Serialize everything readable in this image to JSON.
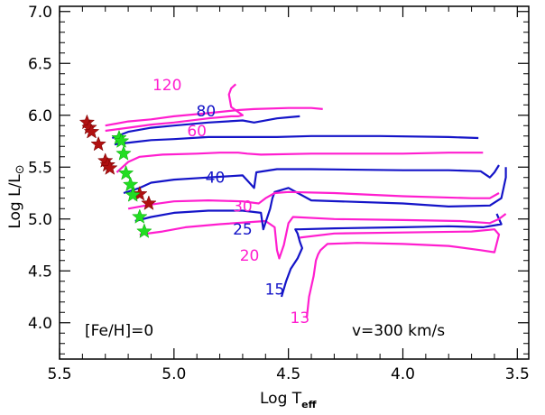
{
  "chart_data": {
    "type": "line",
    "xlabel_main": "Log T",
    "xlabel_sub": "eff",
    "ylabel_main": "Log L/L",
    "ylabel_sun": "⊙",
    "xlim": [
      5.5,
      3.45
    ],
    "ylim": [
      3.65,
      7.05
    ],
    "x_reversed": true,
    "x_ticks": [
      5.5,
      5.0,
      4.5,
      4.0,
      3.5
    ],
    "x_tick_labels": [
      "5.5",
      "5.0",
      "4.5",
      "4.0",
      "3.5"
    ],
    "y_ticks": [
      4.0,
      4.5,
      5.0,
      5.5,
      6.0,
      6.5,
      7.0
    ],
    "y_tick_labels": [
      "4.0",
      "4.5",
      "5.0",
      "5.5",
      "6.0",
      "6.5",
      "7.0"
    ],
    "annotations": {
      "metallicity": "[Fe/H]=0",
      "velocity": "v=300 km/s"
    },
    "colors": {
      "magenta": "#ff1ecf",
      "blue": "#1414c8",
      "red_star": "#b01010",
      "green_star": "#22dd22"
    },
    "series": [
      {
        "label": "13",
        "color": "magenta",
        "points": [
          [
            4.42,
            4.05
          ],
          [
            4.41,
            4.25
          ],
          [
            4.39,
            4.45
          ],
          [
            4.38,
            4.6
          ],
          [
            4.37,
            4.66
          ],
          [
            4.36,
            4.7
          ],
          [
            4.33,
            4.76
          ],
          [
            4.2,
            4.77
          ],
          [
            4.0,
            4.76
          ],
          [
            3.8,
            4.74
          ],
          [
            3.66,
            4.7
          ],
          [
            3.6,
            4.68
          ],
          [
            3.58,
            4.85
          ],
          [
            3.6,
            4.9
          ],
          [
            3.7,
            4.88
          ],
          [
            4.0,
            4.87
          ],
          [
            4.3,
            4.86
          ],
          [
            4.45,
            4.82
          ]
        ],
        "label_pos": [
          4.45,
          4.0
        ]
      },
      {
        "label": "15",
        "color": "blue",
        "points": [
          [
            4.53,
            4.25
          ],
          [
            4.51,
            4.4
          ],
          [
            4.49,
            4.52
          ],
          [
            4.46,
            4.62
          ],
          [
            4.44,
            4.72
          ],
          [
            4.45,
            4.78
          ],
          [
            4.46,
            4.86
          ],
          [
            4.47,
            4.9
          ],
          [
            4.45,
            4.9
          ],
          [
            4.3,
            4.91
          ],
          [
            4.0,
            4.92
          ],
          [
            3.8,
            4.93
          ],
          [
            3.65,
            4.92
          ],
          [
            3.57,
            4.95
          ],
          [
            3.59,
            5.05
          ]
        ],
        "label_pos": [
          4.56,
          4.27
        ]
      },
      {
        "label": "20",
        "color": "magenta",
        "points": [
          [
            5.15,
            4.85
          ],
          [
            5.05,
            4.88
          ],
          [
            4.95,
            4.92
          ],
          [
            4.8,
            4.95
          ],
          [
            4.6,
            4.98
          ],
          [
            4.56,
            4.92
          ],
          [
            4.55,
            4.7
          ],
          [
            4.54,
            4.62
          ],
          [
            4.52,
            4.75
          ],
          [
            4.5,
            4.96
          ],
          [
            4.48,
            5.02
          ],
          [
            4.3,
            5.0
          ],
          [
            4.0,
            4.99
          ],
          [
            3.75,
            4.98
          ],
          [
            3.62,
            4.96
          ],
          [
            3.58,
            5.0
          ],
          [
            3.55,
            5.05
          ]
        ],
        "label_pos": [
          4.67,
          4.6
        ]
      },
      {
        "label": "25",
        "color": "blue",
        "points": [
          [
            5.17,
            4.98
          ],
          [
            5.1,
            5.02
          ],
          [
            5.0,
            5.06
          ],
          [
            4.85,
            5.08
          ],
          [
            4.7,
            5.08
          ],
          [
            4.62,
            5.06
          ],
          [
            4.61,
            4.9
          ],
          [
            4.58,
            5.1
          ],
          [
            4.57,
            5.2
          ],
          [
            4.56,
            5.26
          ],
          [
            4.5,
            5.3
          ],
          [
            4.4,
            5.18
          ],
          [
            4.0,
            5.15
          ],
          [
            3.8,
            5.12
          ],
          [
            3.62,
            5.13
          ],
          [
            3.57,
            5.2
          ],
          [
            3.56,
            5.3
          ],
          [
            3.55,
            5.4
          ],
          [
            3.55,
            5.5
          ]
        ],
        "label_pos": [
          4.7,
          4.85
        ]
      },
      {
        "label": "30",
        "color": "magenta",
        "points": [
          [
            5.2,
            5.1
          ],
          [
            5.1,
            5.14
          ],
          [
            5.0,
            5.17
          ],
          [
            4.85,
            5.18
          ],
          [
            4.7,
            5.17
          ],
          [
            4.63,
            5.15
          ],
          [
            4.6,
            5.2
          ],
          [
            4.56,
            5.25
          ],
          [
            4.5,
            5.26
          ],
          [
            4.3,
            5.25
          ],
          [
            4.0,
            5.22
          ],
          [
            3.7,
            5.2
          ],
          [
            3.62,
            5.2
          ],
          [
            3.58,
            5.25
          ]
        ],
        "label_pos": [
          4.7,
          5.07
        ]
      },
      {
        "label": "40",
        "color": "blue",
        "points": [
          [
            5.22,
            5.25
          ],
          [
            5.15,
            5.3
          ],
          [
            5.1,
            5.35
          ],
          [
            5.0,
            5.38
          ],
          [
            4.85,
            5.4
          ],
          [
            4.7,
            5.42
          ],
          [
            4.65,
            5.3
          ],
          [
            4.64,
            5.45
          ],
          [
            4.55,
            5.48
          ],
          [
            4.4,
            5.48
          ],
          [
            4.0,
            5.47
          ],
          [
            3.8,
            5.47
          ],
          [
            3.66,
            5.46
          ],
          [
            3.62,
            5.4
          ],
          [
            3.6,
            5.45
          ],
          [
            3.58,
            5.52
          ]
        ],
        "label_pos": [
          4.82,
          5.35
        ]
      },
      {
        "label": "60",
        "color": "magenta",
        "points": [
          [
            5.25,
            5.45
          ],
          [
            5.2,
            5.55
          ],
          [
            5.15,
            5.6
          ],
          [
            5.05,
            5.62
          ],
          [
            4.9,
            5.63
          ],
          [
            4.8,
            5.64
          ],
          [
            4.72,
            5.64
          ],
          [
            4.68,
            5.63
          ],
          [
            4.62,
            5.62
          ],
          [
            4.4,
            5.63
          ],
          [
            4.0,
            5.63
          ],
          [
            3.8,
            5.64
          ],
          [
            3.65,
            5.64
          ]
        ],
        "label_pos": [
          4.9,
          5.8
        ]
      },
      {
        "label": "80",
        "color": "blue",
        "points": [
          [
            5.27,
            5.78
          ],
          [
            5.2,
            5.84
          ],
          [
            5.1,
            5.88
          ],
          [
            5.0,
            5.9
          ],
          [
            4.85,
            5.93
          ],
          [
            4.7,
            5.95
          ],
          [
            4.65,
            5.93
          ],
          [
            4.55,
            5.97
          ],
          [
            4.5,
            5.98
          ],
          [
            4.45,
            5.99
          ]
        ],
        "label_pos": [
          4.86,
          5.99
        ]
      },
      {
        "label": "120",
        "color": "magenta",
        "points": [
          [
            5.3,
            5.9
          ],
          [
            5.2,
            5.94
          ],
          [
            5.1,
            5.96
          ],
          [
            5.0,
            5.99
          ],
          [
            4.85,
            6.02
          ],
          [
            4.72,
            6.05
          ],
          [
            4.65,
            6.06
          ],
          [
            4.5,
            6.07
          ],
          [
            4.4,
            6.07
          ],
          [
            4.35,
            6.06
          ]
        ],
        "label_pos": [
          5.03,
          6.24
        ]
      },
      {
        "label": "",
        "color": "magenta",
        "points": [
          [
            5.3,
            5.85
          ],
          [
            5.2,
            5.88
          ],
          [
            5.1,
            5.91
          ],
          [
            5.0,
            5.93
          ],
          [
            4.85,
            5.97
          ],
          [
            4.75,
            5.99
          ],
          [
            4.72,
            5.99
          ],
          [
            4.7,
            6.0
          ],
          [
            4.75,
            6.08
          ],
          [
            4.76,
            6.2
          ],
          [
            4.75,
            6.26
          ],
          [
            4.73,
            6.3
          ]
        ],
        "label_pos": [
          4.75,
          6.3
        ]
      },
      {
        "label": "",
        "color": "blue",
        "points": [
          [
            5.26,
            5.72
          ],
          [
            5.18,
            5.74
          ],
          [
            5.1,
            5.76
          ],
          [
            5.0,
            5.77
          ],
          [
            4.85,
            5.79
          ],
          [
            4.7,
            5.79
          ],
          [
            4.55,
            5.79
          ],
          [
            4.4,
            5.8
          ],
          [
            4.1,
            5.8
          ],
          [
            3.8,
            5.79
          ],
          [
            3.67,
            5.78
          ]
        ],
        "label_pos": [
          3.67,
          5.78
        ]
      }
    ],
    "red_stars": [
      [
        5.38,
        5.93
      ],
      [
        5.37,
        5.88
      ],
      [
        5.36,
        5.84
      ],
      [
        5.33,
        5.72
      ],
      [
        5.3,
        5.56
      ],
      [
        5.29,
        5.52
      ],
      [
        5.28,
        5.49
      ],
      [
        5.15,
        5.24
      ],
      [
        5.11,
        5.15
      ]
    ],
    "green_stars": [
      [
        5.24,
        5.78
      ],
      [
        5.23,
        5.75
      ],
      [
        5.22,
        5.63
      ],
      [
        5.21,
        5.44
      ],
      [
        5.19,
        5.33
      ],
      [
        5.18,
        5.23
      ],
      [
        5.15,
        5.02
      ],
      [
        5.13,
        4.88
      ]
    ]
  }
}
